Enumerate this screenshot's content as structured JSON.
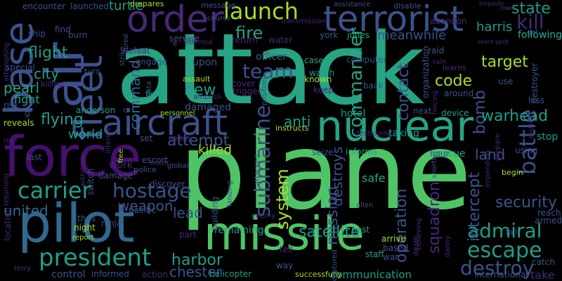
{
  "palette": {
    "background": "#000000",
    "teal": "#26a484",
    "green": "#4fc466",
    "lime": "#a9dc2c",
    "blue": "#31688e",
    "slate": "#3b528b",
    "purple": "#45106d",
    "violet": "#482878",
    "aqua": "#1f9e89"
  },
  "words": [
    "attack",
    "plane",
    "missile",
    "pilot",
    "force",
    "nuclear",
    "terrorist",
    "air",
    "aircraft",
    "fleet",
    "order",
    "base",
    "launch",
    "carrier",
    "president",
    "hostage",
    "escape",
    "submarine",
    "admiral",
    "battle",
    "team",
    "destroy",
    "kill",
    "flight",
    "fire",
    "commander",
    "code",
    "bomb",
    "target",
    "state",
    "city",
    "harbor",
    "attempt",
    "system",
    "mission",
    "warhead",
    "contact",
    "security",
    "new",
    "united",
    "flying",
    "command",
    "satellite",
    "operation",
    "squadron",
    "intercept",
    "land",
    "pearl",
    "killed",
    "following",
    "lead",
    "chester",
    "communication",
    "crash",
    "asteroid",
    "torpedo",
    "turtle",
    "meanwhile",
    "harris",
    "hotel",
    "rescue",
    "destroyer",
    "destroys",
    "ambush",
    "weapon",
    "escort",
    "officer",
    "remaining",
    "safe",
    "jones",
    "computer",
    "casey",
    "abandon",
    "world",
    "anderson",
    "fight",
    "reveals",
    "instructs",
    "informs",
    "anti",
    "helicopter",
    "successfully",
    "taking",
    "stop",
    "damaged",
    "engage",
    "assault",
    "upon",
    "work",
    "killing",
    "cover",
    "known",
    "trigger",
    "watch",
    "keep",
    "back",
    "organization",
    "device",
    "learns",
    "around",
    "loss",
    "using",
    "distress",
    "staff",
    "arrive",
    "based",
    "war",
    "begin",
    "fail",
    "reach",
    "armed",
    "catch",
    "international",
    "control",
    "informed",
    "action",
    "tell",
    "enemy",
    "switch",
    "last",
    "seize",
    "hour",
    "ship",
    "find",
    "burn",
    "special",
    "risk",
    "encounter",
    "launched",
    "prepares",
    "sea",
    "return",
    "water",
    "transmission",
    "message",
    "assistance",
    "disable",
    "course",
    "york",
    "position",
    "attacked",
    "way",
    "captured",
    "believing",
    "night",
    "report",
    "ninja",
    "pacific",
    "thus",
    "part",
    "building",
    "landing",
    "discover",
    "police",
    "global",
    "room",
    "set",
    "enter",
    "free",
    "location",
    "terry",
    "take",
    "take",
    "following",
    "defeat",
    "service",
    "floor",
    "data",
    "strike",
    "turn",
    "shortly",
    "next",
    "unit",
    "use",
    "event",
    "danny",
    "death",
    "impending",
    "prepare",
    "raid",
    "rain",
    "forcing",
    "allen",
    "best",
    "damage",
    "intends",
    "withdraw",
    "returning",
    "roof",
    "attempting",
    "g",
    "c",
    "e",
    "personnel",
    "hired",
    "destroying",
    "get"
  ]
}
